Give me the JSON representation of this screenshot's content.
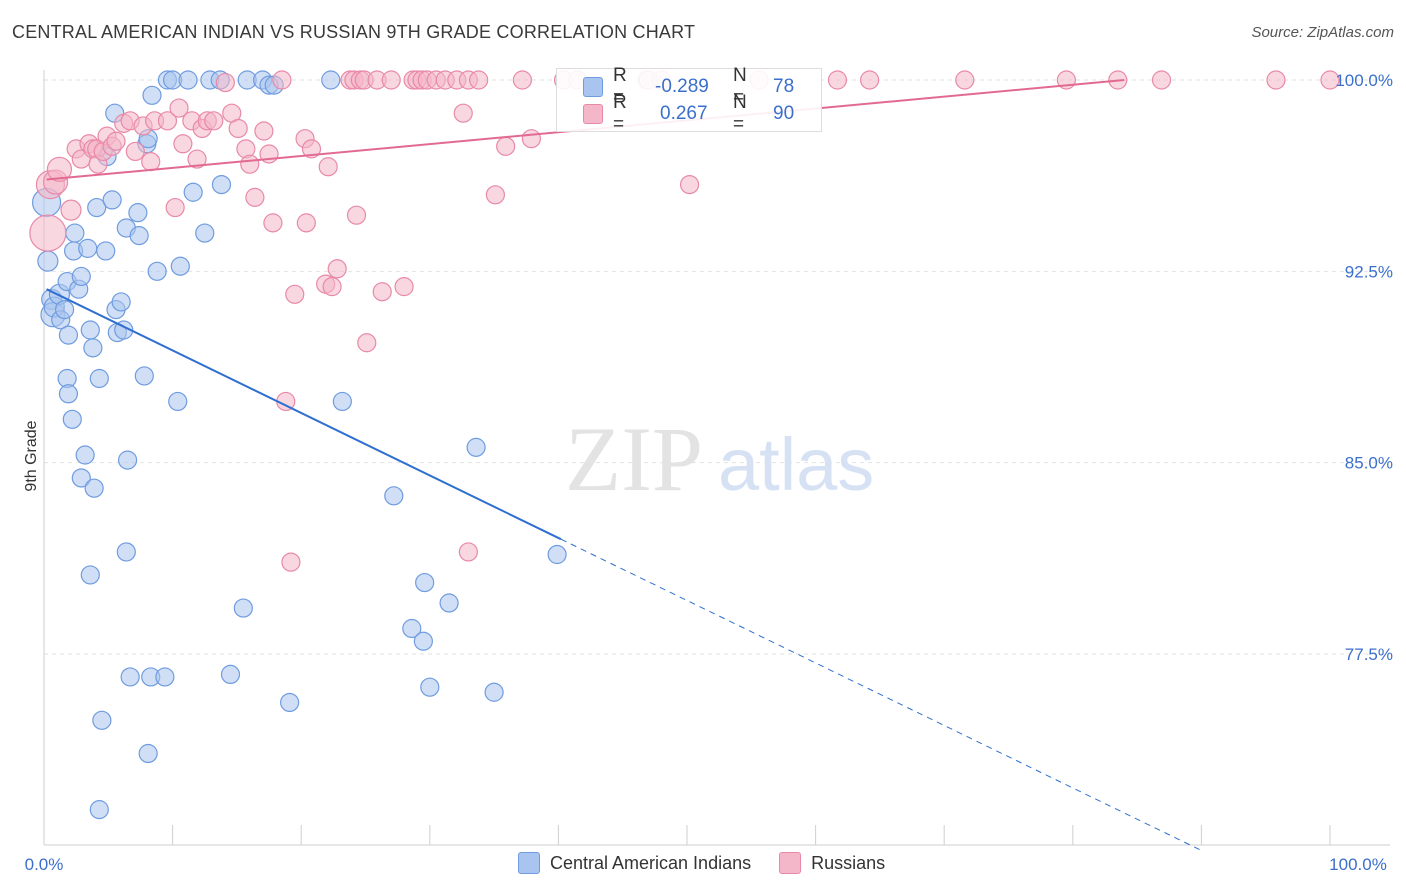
{
  "header": {
    "title": "CENTRAL AMERICAN INDIAN VS RUSSIAN 9TH GRADE CORRELATION CHART",
    "source": "Source: ZipAtlas.com"
  },
  "watermark": {
    "zip": "ZIP",
    "atlas": "atlas"
  },
  "stats": {
    "rows": [
      {
        "r_label": "R =",
        "r_value": "-0.289",
        "n_label": "N =",
        "n_value": "78",
        "color": "#a9c4ee"
      },
      {
        "r_label": "R =",
        "r_value": "0.267",
        "n_label": "N =",
        "n_value": "90",
        "color": "#f4b6c9"
      }
    ]
  },
  "legend": {
    "items": [
      {
        "label": "Central American Indians",
        "color": "#a9c4ee",
        "border": "#6f9ce0"
      },
      {
        "label": "Russians",
        "color": "#f4b6c9",
        "border": "#e889a8"
      }
    ]
  },
  "chart_data": {
    "type": "scatter",
    "title": "CENTRAL AMERICAN INDIAN VS RUSSIAN 9TH GRADE CORRELATION CHART",
    "xlabel": "",
    "ylabel": "9th Grade",
    "xlim": [
      0,
      100
    ],
    "ylim": [
      70.8,
      100.8
    ],
    "x_tick_labels": [
      "0.0%",
      "100.0%"
    ],
    "y_ticks": [
      77.5,
      85.0,
      92.5,
      100.0
    ],
    "y_tick_labels": [
      "77.5%",
      "85.0%",
      "92.5%",
      "100.0%"
    ],
    "grid": true,
    "legend_position": "bottom",
    "colors": {
      "blue_fill": "#a9c4ee",
      "blue_stroke": "#6f9ce0",
      "blue_line": "#2f6fd0",
      "pink_fill": "#f4b6c9",
      "pink_stroke": "#e889a8",
      "pink_line": "#e26a92"
    },
    "series": [
      {
        "name": "Central American Indians",
        "R": -0.289,
        "N": 78,
        "trend": {
          "x0": 0.2,
          "y0": 91.8,
          "x1": 40.2,
          "y1": 82.0,
          "dash_x1": 90.0
        },
        "points": [
          [
            0.2,
            95.2,
            14
          ],
          [
            0.3,
            92.9,
            10
          ],
          [
            0.6,
            91.4,
            10
          ],
          [
            0.7,
            90.8,
            12
          ],
          [
            0.8,
            91.1,
            10
          ],
          [
            1.2,
            91.6,
            10
          ],
          [
            1.3,
            90.6,
            9
          ],
          [
            1.6,
            91.0,
            9
          ],
          [
            1.8,
            92.1,
            9
          ],
          [
            1.9,
            90.0,
            9
          ],
          [
            1.8,
            88.3,
            9
          ],
          [
            1.9,
            87.7,
            9
          ],
          [
            2.2,
            86.7,
            9
          ],
          [
            2.4,
            94.0,
            9
          ],
          [
            2.3,
            93.3,
            9
          ],
          [
            2.7,
            91.8,
            9
          ],
          [
            2.9,
            92.3,
            9
          ],
          [
            2.9,
            84.4,
            9
          ],
          [
            3.2,
            85.3,
            9
          ],
          [
            3.4,
            93.4,
            9
          ],
          [
            3.6,
            90.2,
            9
          ],
          [
            3.8,
            89.5,
            9
          ],
          [
            3.9,
            84.0,
            9
          ],
          [
            4.1,
            95.0,
            9
          ],
          [
            4.3,
            88.3,
            9
          ],
          [
            3.6,
            80.6,
            9
          ],
          [
            4.5,
            74.9,
            9
          ],
          [
            4.3,
            71.4,
            9
          ],
          [
            4.8,
            93.3,
            9
          ],
          [
            4.9,
            97.0,
            9
          ],
          [
            5.3,
            95.3,
            9
          ],
          [
            5.5,
            98.7,
            9
          ],
          [
            5.6,
            91.0,
            9
          ],
          [
            5.7,
            90.1,
            9
          ],
          [
            6.0,
            91.3,
            9
          ],
          [
            6.2,
            90.2,
            9
          ],
          [
            6.4,
            94.2,
            9
          ],
          [
            6.5,
            85.1,
            9
          ],
          [
            6.4,
            81.5,
            9
          ],
          [
            6.7,
            76.6,
            9
          ],
          [
            7.3,
            94.8,
            9
          ],
          [
            7.4,
            93.9,
            9
          ],
          [
            7.8,
            88.4,
            9
          ],
          [
            8.0,
            97.5,
            9
          ],
          [
            8.1,
            97.7,
            9
          ],
          [
            8.3,
            76.6,
            9
          ],
          [
            8.1,
            73.6,
            9
          ],
          [
            8.4,
            99.4,
            9
          ],
          [
            8.8,
            92.5,
            9
          ],
          [
            9.4,
            76.6,
            9
          ],
          [
            9.6,
            100.0,
            9
          ],
          [
            10.0,
            100.0,
            9
          ],
          [
            10.4,
            87.4,
            9
          ],
          [
            10.6,
            92.7,
            9
          ],
          [
            11.2,
            100.0,
            9
          ],
          [
            11.6,
            95.6,
            9
          ],
          [
            12.5,
            94.0,
            9
          ],
          [
            12.9,
            100.0,
            9
          ],
          [
            13.7,
            100.0,
            9
          ],
          [
            13.8,
            95.9,
            9
          ],
          [
            14.5,
            76.7,
            9
          ],
          [
            15.5,
            79.3,
            9
          ],
          [
            15.8,
            100.0,
            9
          ],
          [
            17.0,
            100.0,
            9
          ],
          [
            17.5,
            99.8,
            9
          ],
          [
            17.9,
            99.8,
            9
          ],
          [
            19.1,
            75.6,
            9
          ],
          [
            22.3,
            100.0,
            9
          ],
          [
            23.2,
            87.4,
            9
          ],
          [
            27.2,
            83.7,
            9
          ],
          [
            28.6,
            78.5,
            9
          ],
          [
            29.5,
            78.0,
            9
          ],
          [
            29.6,
            80.3,
            9
          ],
          [
            31.5,
            79.5,
            9
          ],
          [
            30.0,
            76.2,
            9
          ],
          [
            33.6,
            85.6,
            9
          ],
          [
            35.0,
            76.0,
            9
          ],
          [
            39.9,
            81.4,
            9
          ]
        ]
      },
      {
        "name": "Russians",
        "R": 0.267,
        "N": 90,
        "trend": {
          "x0": 0.2,
          "y0": 96.1,
          "x1": 84.0,
          "y1": 100.0
        },
        "points": [
          [
            0.3,
            94.0,
            18
          ],
          [
            0.5,
            95.9,
            14
          ],
          [
            0.9,
            96.0,
            12
          ],
          [
            1.2,
            96.5,
            12
          ],
          [
            2.1,
            94.9,
            10
          ],
          [
            2.5,
            97.3,
            9
          ],
          [
            2.9,
            96.9,
            9
          ],
          [
            3.5,
            97.5,
            9
          ],
          [
            3.8,
            97.3,
            9
          ],
          [
            4.1,
            97.3,
            9
          ],
          [
            4.2,
            96.7,
            9
          ],
          [
            4.6,
            97.2,
            9
          ],
          [
            4.9,
            97.8,
            9
          ],
          [
            5.3,
            97.4,
            9
          ],
          [
            5.6,
            97.6,
            9
          ],
          [
            6.2,
            98.3,
            9
          ],
          [
            6.7,
            98.4,
            9
          ],
          [
            7.1,
            97.2,
            9
          ],
          [
            7.7,
            98.2,
            9
          ],
          [
            8.3,
            96.8,
            9
          ],
          [
            8.6,
            98.4,
            9
          ],
          [
            9.6,
            98.4,
            9
          ],
          [
            10.2,
            95.0,
            9
          ],
          [
            10.5,
            98.9,
            9
          ],
          [
            10.8,
            97.5,
            9
          ],
          [
            11.5,
            98.4,
            9
          ],
          [
            11.9,
            96.9,
            9
          ],
          [
            12.3,
            98.1,
            9
          ],
          [
            12.7,
            98.4,
            9
          ],
          [
            13.2,
            98.4,
            9
          ],
          [
            14.1,
            99.9,
            9
          ],
          [
            14.6,
            98.7,
            9
          ],
          [
            15.1,
            98.1,
            9
          ],
          [
            15.7,
            97.3,
            9
          ],
          [
            16.0,
            96.7,
            9
          ],
          [
            16.4,
            95.4,
            9
          ],
          [
            17.1,
            98.0,
            9
          ],
          [
            17.5,
            97.1,
            9
          ],
          [
            17.8,
            94.4,
            9
          ],
          [
            18.5,
            100.0,
            9
          ],
          [
            18.8,
            87.4,
            9
          ],
          [
            19.2,
            81.1,
            9
          ],
          [
            19.5,
            91.6,
            9
          ],
          [
            20.3,
            97.7,
            9
          ],
          [
            20.4,
            94.4,
            9
          ],
          [
            20.8,
            97.3,
            9
          ],
          [
            21.9,
            92.0,
            9
          ],
          [
            22.1,
            96.6,
            9
          ],
          [
            22.4,
            91.9,
            9
          ],
          [
            22.8,
            92.6,
            9
          ],
          [
            23.8,
            100.0,
            9
          ],
          [
            24.1,
            100.0,
            9
          ],
          [
            24.3,
            94.7,
            9
          ],
          [
            24.6,
            100.0,
            9
          ],
          [
            24.9,
            100.0,
            9
          ],
          [
            25.1,
            89.7,
            9
          ],
          [
            25.9,
            100.0,
            9
          ],
          [
            26.3,
            91.7,
            9
          ],
          [
            27.0,
            100.0,
            9
          ],
          [
            28.0,
            91.9,
            9
          ],
          [
            28.7,
            100.0,
            9
          ],
          [
            29.0,
            100.0,
            9
          ],
          [
            29.4,
            100.0,
            9
          ],
          [
            29.8,
            100.0,
            9
          ],
          [
            30.5,
            100.0,
            9
          ],
          [
            31.2,
            100.0,
            9
          ],
          [
            32.1,
            100.0,
            9
          ],
          [
            32.6,
            98.7,
            9
          ],
          [
            33.0,
            100.0,
            9
          ],
          [
            33.0,
            81.5,
            9
          ],
          [
            33.8,
            100.0,
            9
          ],
          [
            35.1,
            95.5,
            9
          ],
          [
            35.9,
            97.4,
            9
          ],
          [
            37.2,
            100.0,
            9
          ],
          [
            37.9,
            97.7,
            9
          ],
          [
            40.4,
            100.0,
            9
          ],
          [
            41.5,
            100.0,
            9
          ],
          [
            46.9,
            100.0,
            9
          ],
          [
            47.0,
            100.0,
            9
          ],
          [
            48.0,
            100.0,
            9
          ],
          [
            50.2,
            95.9,
            9
          ],
          [
            55.6,
            100.0,
            9
          ],
          [
            61.7,
            100.0,
            9
          ],
          [
            64.2,
            100.0,
            9
          ],
          [
            71.6,
            100.0,
            9
          ],
          [
            79.5,
            100.0,
            9
          ],
          [
            83.5,
            100.0,
            9
          ],
          [
            86.9,
            100.0,
            9
          ],
          [
            95.8,
            100.0,
            9
          ],
          [
            100.0,
            100.0,
            9
          ]
        ]
      }
    ]
  }
}
